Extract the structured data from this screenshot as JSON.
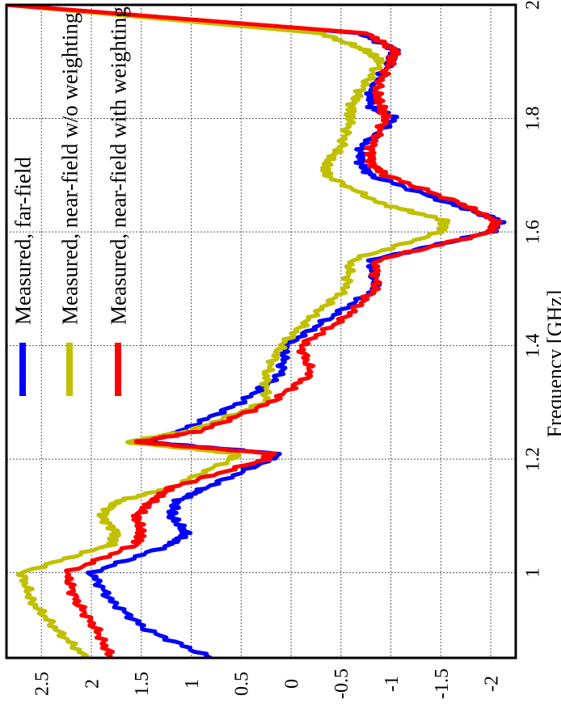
{
  "chart_data": {
    "type": "line",
    "title": "",
    "xlabel": "Frequency [GHz]",
    "ylabel": "",
    "xlim": [
      0.85,
      2.0
    ],
    "ylim": [
      -2.25,
      2.85
    ],
    "x_ticks": [
      "1",
      "1.2",
      "1.4",
      "1.6",
      "1.8",
      "2"
    ],
    "y_ticks": [
      "2.5",
      "2",
      "1.5",
      "1",
      "0.5",
      "0",
      "-0.5",
      "-1",
      "-1.5",
      "-2"
    ],
    "grid": true,
    "orientation": "rotated-90-ccw",
    "legend_position": "top-left",
    "x": [
      0.85,
      0.9,
      0.95,
      1.0,
      1.05,
      1.07,
      1.1,
      1.125,
      1.15,
      1.2,
      1.21,
      1.23,
      1.25,
      1.3,
      1.35,
      1.4,
      1.45,
      1.5,
      1.55,
      1.6,
      1.62,
      1.65,
      1.7,
      1.72,
      1.75,
      1.8,
      1.82,
      1.85,
      1.9,
      1.92,
      1.95,
      2.0
    ],
    "series": [
      {
        "name": "Measured, far-field",
        "color": "#0000ff",
        "values": [
          0.8,
          1.45,
          1.8,
          2.0,
          1.2,
          1.05,
          1.2,
          1.15,
          0.85,
          0.2,
          0.15,
          1.45,
          1.1,
          0.5,
          0.1,
          0.05,
          -0.4,
          -0.85,
          -0.8,
          -2.0,
          -2.1,
          -1.6,
          -0.8,
          -0.7,
          -0.7,
          -1.05,
          -0.8,
          -0.8,
          -1.0,
          -1.05,
          -0.7,
          2.85
        ]
      },
      {
        "name": "Measured, near-field w/o weighting",
        "color": "#c0c000",
        "values": [
          2.05,
          2.35,
          2.6,
          2.7,
          1.8,
          1.75,
          1.9,
          1.75,
          1.2,
          0.6,
          0.55,
          1.65,
          1.0,
          0.25,
          0.25,
          0.1,
          -0.2,
          -0.55,
          -0.6,
          -1.5,
          -1.55,
          -0.9,
          -0.35,
          -0.35,
          -0.5,
          -0.6,
          -0.6,
          -0.7,
          -0.9,
          -0.75,
          -0.3,
          2.85
        ]
      },
      {
        "name": "Measured, near-field with weighting",
        "color": "#ff0000",
        "values": [
          1.8,
          1.95,
          2.15,
          2.25,
          1.55,
          1.5,
          1.55,
          1.4,
          1.2,
          0.25,
          0.2,
          1.55,
          0.9,
          0.2,
          -0.2,
          -0.1,
          -0.55,
          -0.85,
          -0.85,
          -2.0,
          -2.05,
          -1.7,
          -0.95,
          -0.8,
          -0.8,
          -0.95,
          -0.9,
          -0.85,
          -1.0,
          -1.05,
          -0.75,
          2.85
        ]
      }
    ]
  }
}
